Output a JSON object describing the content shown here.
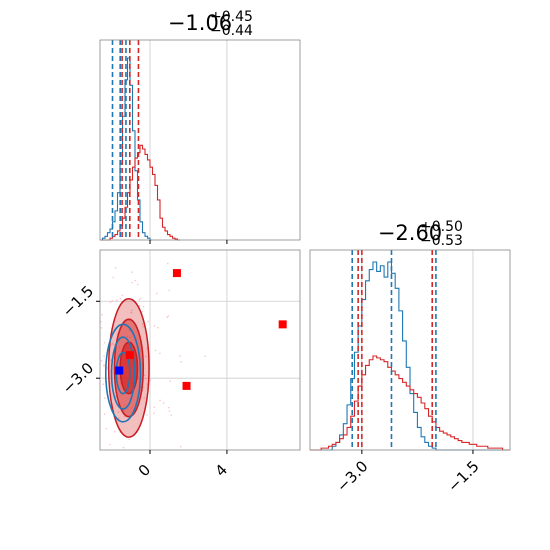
{
  "chart_data": [
    {
      "panel": "marginal-param-1",
      "type": "histogram",
      "title": {
        "main": "−1.06",
        "sup": "+0.45",
        "sub": "−0.44"
      },
      "xlim": [
        -2.6,
        7.8
      ],
      "quantiles_blue": [
        -1.95,
        -1.55,
        -1.25
      ],
      "quantiles_red": [
        -1.45,
        -1.05,
        -0.6
      ],
      "series": [
        {
          "color": "#1f77b4",
          "x_start": -2.6,
          "bin_width": 0.13,
          "values": [
            0,
            0.01,
            0.02,
            0.04,
            0.06,
            0.1,
            0.16,
            0.26,
            0.42,
            0.68,
            0.88,
            1.0,
            0.85,
            0.6,
            0.38,
            0.22,
            0.1,
            0.04,
            0.02,
            0.01,
            0
          ]
        },
        {
          "color": "#d62728",
          "x_start": -2.6,
          "bin_width": 0.13,
          "values": [
            0,
            0,
            0,
            0,
            0.01,
            0.02,
            0.03,
            0.05,
            0.08,
            0.12,
            0.18,
            0.26,
            0.33,
            0.4,
            0.45,
            0.48,
            0.52,
            0.5,
            0.47,
            0.44,
            0.4,
            0.36,
            0.3,
            0.22,
            0.12,
            0.07,
            0.05,
            0.03,
            0.02,
            0.01,
            0.005,
            0
          ]
        }
      ],
      "xticks": [
        0,
        4
      ]
    },
    {
      "panel": "marginal-param-2",
      "type": "histogram",
      "title": {
        "main": "−2.60",
        "sup": "+0.50",
        "sub": "−0.53"
      },
      "xlim": [
        -3.7,
        -1.0
      ],
      "quantiles_blue": [
        -3.13,
        -2.6,
        -2.0
      ],
      "quantiles_red": [
        -3.05,
        -3.0,
        -2.05
      ],
      "series": [
        {
          "color": "#1f77b4",
          "x_start": -3.7,
          "bin_width": 0.05,
          "values": [
            0,
            0,
            0,
            0,
            0,
            0,
            0.02,
            0.04,
            0.08,
            0.14,
            0.24,
            0.38,
            0.52,
            0.66,
            0.8,
            0.9,
            0.96,
            1.0,
            0.95,
            0.98,
            0.92,
            1.0,
            0.94,
            0.86,
            0.74,
            0.58,
            0.44,
            0.3,
            0.2,
            0.12,
            0.07,
            0.04,
            0.02,
            0.01,
            0,
            0,
            0,
            0,
            0,
            0,
            0,
            0,
            0,
            0,
            0,
            0,
            0,
            0,
            0,
            0,
            0,
            0,
            0,
            0
          ]
        },
        {
          "color": "#d62728",
          "x_start": -3.7,
          "bin_width": 0.05,
          "values": [
            0,
            0,
            0,
            0.01,
            0.01,
            0.02,
            0.03,
            0.04,
            0.06,
            0.08,
            0.12,
            0.18,
            0.26,
            0.34,
            0.4,
            0.45,
            0.48,
            0.5,
            0.49,
            0.48,
            0.47,
            0.44,
            0.42,
            0.4,
            0.38,
            0.36,
            0.34,
            0.32,
            0.3,
            0.28,
            0.25,
            0.22,
            0.18,
            0.15,
            0.12,
            0.1,
            0.09,
            0.08,
            0.07,
            0.06,
            0.05,
            0.04,
            0.04,
            0.03,
            0.03,
            0.02,
            0.02,
            0.02,
            0.01,
            0.01,
            0.01,
            0.01,
            0,
            0
          ]
        }
      ],
      "xticks": [
        -3.0,
        -1.5
      ],
      "xtick_labels": [
        "−3.0",
        "−1.5"
      ]
    },
    {
      "panel": "joint-2d",
      "type": "scatter",
      "xlim": [
        -2.6,
        7.8
      ],
      "ylim": [
        -4.4,
        -0.5
      ],
      "xticks": [
        0,
        4
      ],
      "xtick_labels": [
        "0",
        "4"
      ],
      "yticks": [
        -1.5,
        -3.0
      ],
      "ytick_labels": [
        "−1.5",
        "−3.0"
      ],
      "red_contours": {
        "center": [
          -1.1,
          -2.8
        ],
        "sx": [
          0.45,
          0.75,
          1.05
        ],
        "sy": [
          0.5,
          0.95,
          1.35
        ],
        "opacity": [
          0.75,
          0.5,
          0.3
        ]
      },
      "blue_contours": {
        "center": [
          -1.4,
          -2.9
        ],
        "sx": [
          0.35,
          0.6,
          0.9
        ],
        "sy": [
          0.4,
          0.7,
          0.95
        ]
      },
      "red_markers": [
        [
          1.4,
          -0.95
        ],
        [
          6.9,
          -1.95
        ],
        [
          1.9,
          -3.15
        ],
        [
          -1.05,
          -2.55
        ]
      ],
      "blue_markers": [
        [
          -1.6,
          -2.85
        ]
      ]
    }
  ]
}
